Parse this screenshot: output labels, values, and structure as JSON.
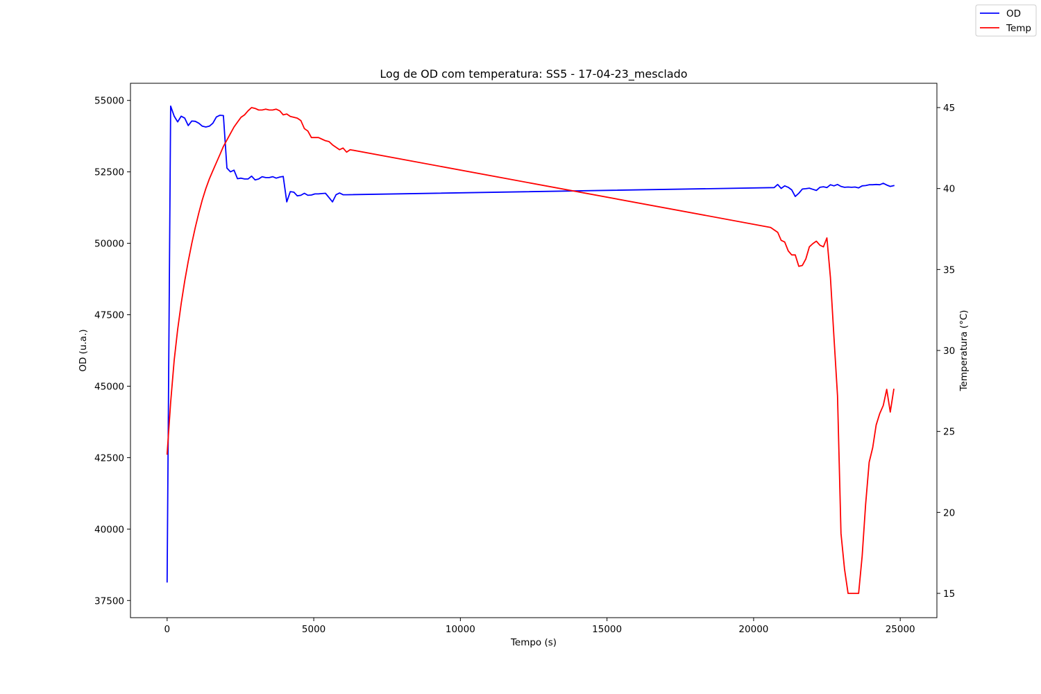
{
  "chart_data": {
    "type": "line",
    "title": "Log de OD com temperatura: SS5 - 17-04-23_mesclado",
    "xlabel": "Tempo (s)",
    "ylabel_left": "OD (u.a.)",
    "ylabel_right": "Temperatura (°C)",
    "xlim": [
      -1250,
      26250
    ],
    "ylim_left": [
      36900,
      55600
    ],
    "ylim_right": [
      13.5,
      46.5
    ],
    "x_ticks": [
      0,
      5000,
      10000,
      15000,
      20000,
      25000
    ],
    "x_tick_labels": [
      "0",
      "5000",
      "10000",
      "15000",
      "20000",
      "25000"
    ],
    "y_left_ticks": [
      37500,
      40000,
      42500,
      45000,
      47500,
      50000,
      52500,
      55000
    ],
    "y_left_tick_labels": [
      "37500",
      "40000",
      "42500",
      "45000",
      "47500",
      "50000",
      "52500",
      "55000"
    ],
    "y_right_ticks": [
      15,
      20,
      25,
      30,
      35,
      40,
      45
    ],
    "y_right_tick_labels": [
      "15",
      "20",
      "25",
      "30",
      "35",
      "40",
      "45"
    ],
    "grid": false,
    "legend_position": "top-right",
    "legend": [
      {
        "label": "OD",
        "color": "#0000ff"
      },
      {
        "label": "Temp",
        "color": "#ff0000"
      }
    ],
    "series": [
      {
        "name": "OD",
        "axis": "left",
        "color": "#0000ff",
        "points": [
          [
            0,
            38150
          ],
          [
            120,
            54800
          ],
          [
            240,
            54450
          ],
          [
            360,
            54250
          ],
          [
            480,
            54450
          ],
          [
            600,
            54380
          ],
          [
            720,
            54120
          ],
          [
            840,
            54280
          ],
          [
            960,
            54270
          ],
          [
            1080,
            54200
          ],
          [
            1200,
            54100
          ],
          [
            1320,
            54070
          ],
          [
            1440,
            54100
          ],
          [
            1560,
            54200
          ],
          [
            1680,
            54420
          ],
          [
            1800,
            54480
          ],
          [
            1920,
            54470
          ],
          [
            2040,
            52630
          ],
          [
            2160,
            52500
          ],
          [
            2280,
            52560
          ],
          [
            2400,
            52260
          ],
          [
            2520,
            52280
          ],
          [
            2640,
            52250
          ],
          [
            2760,
            52250
          ],
          [
            2880,
            52350
          ],
          [
            3000,
            52220
          ],
          [
            3120,
            52250
          ],
          [
            3240,
            52330
          ],
          [
            3360,
            52300
          ],
          [
            3480,
            52300
          ],
          [
            3600,
            52330
          ],
          [
            3720,
            52280
          ],
          [
            3840,
            52320
          ],
          [
            3960,
            52340
          ],
          [
            4080,
            51450
          ],
          [
            4200,
            51810
          ],
          [
            4320,
            51790
          ],
          [
            4440,
            51660
          ],
          [
            4560,
            51680
          ],
          [
            4680,
            51750
          ],
          [
            4800,
            51680
          ],
          [
            4920,
            51690
          ],
          [
            5040,
            51730
          ],
          [
            5160,
            51730
          ],
          [
            5280,
            51740
          ],
          [
            5400,
            51750
          ],
          [
            5520,
            51600
          ],
          [
            5640,
            51450
          ],
          [
            5760,
            51700
          ],
          [
            5880,
            51760
          ],
          [
            6000,
            51700
          ],
          [
            6120,
            51700
          ],
          [
            20700,
            51950
          ],
          [
            20820,
            52060
          ],
          [
            20940,
            51920
          ],
          [
            21060,
            52010
          ],
          [
            21180,
            51960
          ],
          [
            21300,
            51870
          ],
          [
            21420,
            51640
          ],
          [
            21540,
            51750
          ],
          [
            21660,
            51900
          ],
          [
            21780,
            51910
          ],
          [
            21900,
            51930
          ],
          [
            22020,
            51890
          ],
          [
            22140,
            51850
          ],
          [
            22260,
            51960
          ],
          [
            22380,
            51980
          ],
          [
            22500,
            51950
          ],
          [
            22620,
            52050
          ],
          [
            22740,
            52010
          ],
          [
            22860,
            52060
          ],
          [
            22980,
            51990
          ],
          [
            23100,
            51960
          ],
          [
            23220,
            51970
          ],
          [
            23340,
            51960
          ],
          [
            23460,
            51970
          ],
          [
            23580,
            51940
          ],
          [
            23700,
            52010
          ],
          [
            23820,
            52020
          ],
          [
            23940,
            52050
          ],
          [
            24060,
            52050
          ],
          [
            24180,
            52060
          ],
          [
            24300,
            52050
          ],
          [
            24420,
            52100
          ],
          [
            24540,
            52040
          ],
          [
            24660,
            51990
          ],
          [
            24780,
            52020
          ]
        ]
      },
      {
        "name": "Temp",
        "axis": "right",
        "color": "#ff0000",
        "points": [
          [
            0,
            23.6
          ],
          [
            120,
            26.8
          ],
          [
            240,
            29.4
          ],
          [
            360,
            31.3
          ],
          [
            480,
            32.9
          ],
          [
            600,
            34.3
          ],
          [
            720,
            35.5
          ],
          [
            840,
            36.6
          ],
          [
            960,
            37.6
          ],
          [
            1080,
            38.5
          ],
          [
            1200,
            39.3
          ],
          [
            1320,
            40.0
          ],
          [
            1440,
            40.6
          ],
          [
            1560,
            41.1
          ],
          [
            1680,
            41.6
          ],
          [
            1800,
            42.1
          ],
          [
            1920,
            42.6
          ],
          [
            2040,
            43.0
          ],
          [
            2160,
            43.4
          ],
          [
            2280,
            43.8
          ],
          [
            2400,
            44.1
          ],
          [
            2520,
            44.4
          ],
          [
            2640,
            44.55
          ],
          [
            2760,
            44.8
          ],
          [
            2880,
            45.0
          ],
          [
            3000,
            44.95
          ],
          [
            3120,
            44.85
          ],
          [
            3240,
            44.85
          ],
          [
            3360,
            44.9
          ],
          [
            3480,
            44.85
          ],
          [
            3600,
            44.85
          ],
          [
            3720,
            44.9
          ],
          [
            3840,
            44.8
          ],
          [
            3960,
            44.55
          ],
          [
            4080,
            44.6
          ],
          [
            4200,
            44.45
          ],
          [
            4320,
            44.4
          ],
          [
            4440,
            44.35
          ],
          [
            4560,
            44.2
          ],
          [
            4680,
            43.7
          ],
          [
            4800,
            43.55
          ],
          [
            4920,
            43.15
          ],
          [
            5040,
            43.15
          ],
          [
            5160,
            43.15
          ],
          [
            5280,
            43.05
          ],
          [
            5400,
            42.95
          ],
          [
            5520,
            42.9
          ],
          [
            5640,
            42.7
          ],
          [
            5760,
            42.55
          ],
          [
            5880,
            42.4
          ],
          [
            6000,
            42.5
          ],
          [
            6120,
            42.25
          ],
          [
            6240,
            42.4
          ],
          [
            20580,
            37.6
          ],
          [
            20700,
            37.45
          ],
          [
            20820,
            37.3
          ],
          [
            20940,
            36.8
          ],
          [
            21060,
            36.7
          ],
          [
            21180,
            36.15
          ],
          [
            21300,
            35.9
          ],
          [
            21420,
            35.9
          ],
          [
            21540,
            35.2
          ],
          [
            21660,
            35.25
          ],
          [
            21780,
            35.65
          ],
          [
            21900,
            36.4
          ],
          [
            22020,
            36.6
          ],
          [
            22140,
            36.75
          ],
          [
            22260,
            36.5
          ],
          [
            22380,
            36.4
          ],
          [
            22500,
            36.95
          ],
          [
            22620,
            34.5
          ],
          [
            22740,
            30.8
          ],
          [
            22860,
            27.2
          ],
          [
            22980,
            18.7
          ],
          [
            23100,
            16.5
          ],
          [
            23220,
            15.0
          ],
          [
            23340,
            15.0
          ],
          [
            23460,
            15.0
          ],
          [
            23580,
            15.0
          ],
          [
            23700,
            17.3
          ],
          [
            23820,
            20.5
          ],
          [
            23940,
            23.1
          ],
          [
            24060,
            24.0
          ],
          [
            24180,
            25.4
          ],
          [
            24300,
            26.1
          ],
          [
            24420,
            26.6
          ],
          [
            24540,
            27.6
          ],
          [
            24660,
            26.2
          ],
          [
            24780,
            27.6
          ]
        ]
      }
    ]
  }
}
